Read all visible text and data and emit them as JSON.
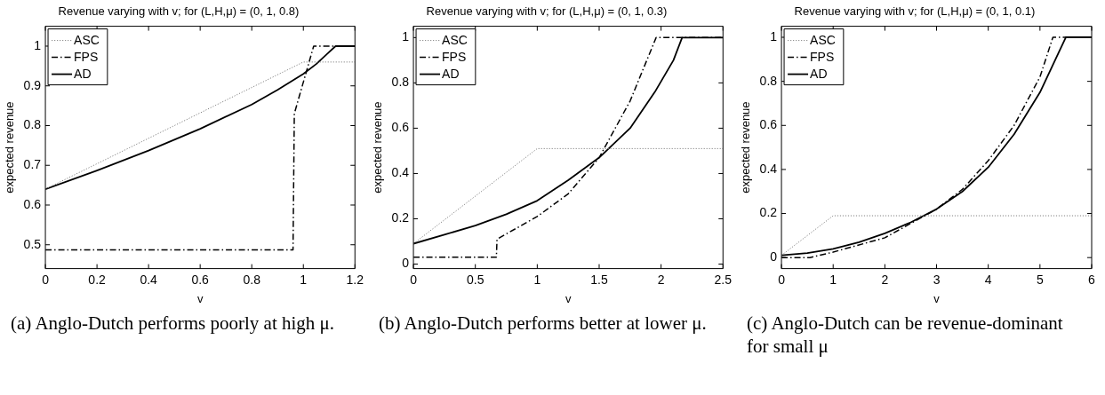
{
  "chart_data": [
    {
      "type": "line",
      "title": "Revenue varying with v; for (L,H,μ) = (0, 1, 0.8)",
      "xlabel": "v",
      "ylabel": "expected revenue",
      "xlim": [
        0,
        1.2
      ],
      "xticks": [
        0,
        0.2,
        0.4,
        0.6,
        0.8,
        1,
        1.2
      ],
      "ylim": [
        0.44,
        1.05
      ],
      "yticks": [
        0.5,
        0.6,
        0.7,
        0.8,
        0.9,
        1
      ],
      "grid": false,
      "legend": "top left",
      "marker": "none",
      "annotations": [
        "(a) Anglo-Dutch performs poorly at high μ."
      ],
      "series": [
        {
          "name": "ASC",
          "color": "#808080",
          "line_style": "dotted",
          "x": [
            0,
            1,
            1.2
          ],
          "values": [
            0.64,
            0.96,
            0.96
          ]
        },
        {
          "name": "FPS",
          "color": "#000000",
          "line_style": "dashed",
          "x": [
            0,
            0.96,
            0.965,
            1.04,
            1.2
          ],
          "values": [
            0.487,
            0.487,
            0.83,
            1.0,
            1.0
          ]
        },
        {
          "name": "AD",
          "color": "#000000",
          "line_style": "solid",
          "x": [
            0,
            0.2,
            0.4,
            0.6,
            0.8,
            0.9,
            1,
            1.05,
            1.1,
            1.125,
            1.2
          ],
          "values": [
            0.64,
            0.687,
            0.737,
            0.792,
            0.853,
            0.89,
            0.93,
            0.955,
            0.985,
            1.0,
            1.0
          ]
        }
      ]
    },
    {
      "type": "line",
      "title": "Revenue varying with v; for (L,H,μ) = (0, 1, 0.3)",
      "xlabel": "v",
      "ylabel": "expected revenue",
      "xlim": [
        0,
        2.5
      ],
      "xticks": [
        0,
        0.5,
        1,
        1.5,
        2,
        2.5
      ],
      "ylim": [
        -0.02,
        1.05
      ],
      "yticks": [
        0,
        0.2,
        0.4,
        0.6,
        0.8,
        1
      ],
      "grid": false,
      "legend": "top left",
      "marker": "none",
      "annotations": [
        "(b) Anglo-Dutch performs better at lower μ."
      ],
      "series": [
        {
          "name": "ASC",
          "color": "#808080",
          "line_style": "dotted",
          "x": [
            0,
            1,
            2.5
          ],
          "values": [
            0.09,
            0.51,
            0.51
          ]
        },
        {
          "name": "FPS",
          "color": "#000000",
          "line_style": "dashed",
          "x": [
            0,
            0.67,
            0.675,
            1,
            1.25,
            1.5,
            1.75,
            1.96,
            2.5
          ],
          "values": [
            0.03,
            0.03,
            0.11,
            0.21,
            0.31,
            0.47,
            0.72,
            1.0,
            1.0
          ]
        },
        {
          "name": "AD",
          "color": "#000000",
          "line_style": "solid",
          "x": [
            0,
            0.25,
            0.5,
            0.75,
            1,
            1.25,
            1.5,
            1.75,
            1.95,
            2.1,
            2.17,
            2.5
          ],
          "values": [
            0.09,
            0.13,
            0.17,
            0.22,
            0.28,
            0.37,
            0.47,
            0.6,
            0.76,
            0.9,
            1.0,
            1.0
          ]
        }
      ]
    },
    {
      "type": "line",
      "title": "Revenue varying with v; for (L,H,μ) = (0, 1, 0.1)",
      "xlabel": "v",
      "ylabel": "expected revenue",
      "xlim": [
        0,
        6
      ],
      "xticks": [
        0,
        1,
        2,
        3,
        4,
        5,
        6
      ],
      "ylim": [
        -0.05,
        1.05
      ],
      "yticks": [
        0,
        0.2,
        0.4,
        0.6,
        0.8,
        1
      ],
      "grid": false,
      "legend": "top left",
      "marker": "none",
      "annotations": [
        "(c) Anglo-Dutch can be revenue-dominant for small μ"
      ],
      "series": [
        {
          "name": "ASC",
          "color": "#808080",
          "line_style": "dotted",
          "x": [
            0,
            1,
            6
          ],
          "values": [
            0.01,
            0.19,
            0.19
          ]
        },
        {
          "name": "FPS",
          "color": "#000000",
          "line_style": "dashed",
          "x": [
            0,
            0.55,
            1,
            2,
            3,
            3.5,
            4,
            4.5,
            5,
            5.25,
            6
          ],
          "values": [
            0,
            0,
            0.025,
            0.09,
            0.22,
            0.31,
            0.44,
            0.6,
            0.82,
            1.0,
            1.0
          ]
        },
        {
          "name": "AD",
          "color": "#000000",
          "line_style": "solid",
          "x": [
            0,
            0.5,
            1,
            1.5,
            2,
            2.5,
            3,
            3.5,
            4,
            4.5,
            5,
            5.3,
            5.5,
            6
          ],
          "values": [
            0.01,
            0.02,
            0.04,
            0.07,
            0.11,
            0.16,
            0.22,
            0.3,
            0.41,
            0.56,
            0.75,
            0.9,
            1.0,
            1.0
          ]
        }
      ]
    }
  ]
}
